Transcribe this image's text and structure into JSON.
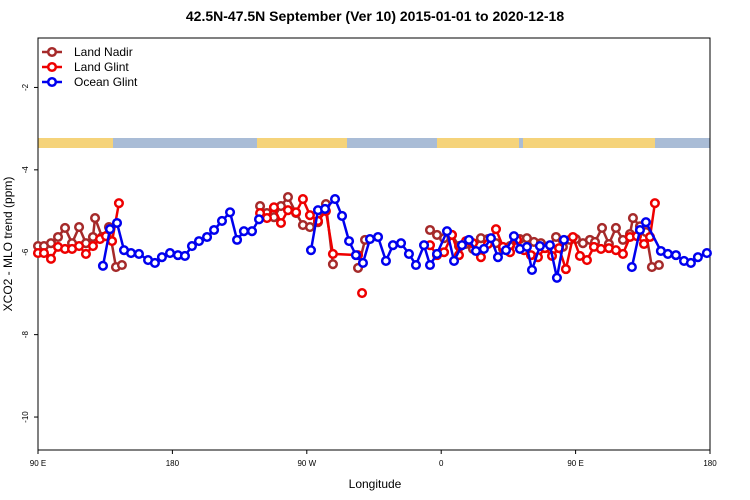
{
  "chart_data": {
    "type": "line",
    "title": "42.5N-47.5N September (Ver 10)   2015-01-01 to 2020-12-18",
    "xlabel": "Longitude",
    "ylabel": "XCO2 - MLO trend (ppm)",
    "xlim": [
      90,
      540
    ],
    "ylim": [
      -10.8,
      -0.8
    ],
    "xticks": [
      {
        "value": 90,
        "label": "90 E"
      },
      180,
      {
        "value": 270,
        "label": "90 W"
      },
      {
        "value": 360,
        "label": "0"
      },
      {
        "value": 450,
        "label": "90 E"
      },
      {
        "value": 540,
        "label": "180"
      }
    ],
    "yticks": [
      -2,
      -4,
      -6,
      -8,
      -10
    ],
    "legend": "upper left",
    "series": [
      {
        "name": "Land Nadir",
        "color": "#a52a2a",
        "x": [
          90.0,
          94.0,
          98.7,
          103.4,
          108.1,
          112.8,
          117.5,
          122.1,
          126.8,
          128.2,
          132.9,
          137.5,
          142.2,
          146.2,
          null,
          238.7,
          243.3,
          248.0,
          252.7,
          257.4,
          262.8,
          267.4,
          272.1,
          277.5,
          282.8,
          287.5,
          null,
          304.3,
          309.0,
          null,
          352.5,
          357.2,
          361.9,
          367.2,
          371.9,
          376.6,
          381.3,
          386.6,
          391.3,
          396.7,
          401.4,
          406.1,
          412.7,
          417.4,
          422.1,
          426.8,
          432.2,
          436.9,
          441.5,
          446.2,
          450.2,
          454.9,
          459.6,
          463.0,
          467.7,
          472.3,
          477.0,
          481.7,
          486.4,
          488.4,
          493.1,
          497.1,
          501.1,
          505.8
        ],
        "values": [
          -5.85,
          -5.85,
          -5.78,
          -5.63,
          -5.41,
          -5.78,
          -5.39,
          -5.78,
          -5.63,
          -5.17,
          -5.63,
          -5.39,
          -6.36,
          -6.31,
          null,
          -4.88,
          -5.05,
          -5.15,
          -4.88,
          -4.66,
          -5.05,
          -5.34,
          -5.39,
          -5.27,
          -4.83,
          -6.29,
          null,
          -6.38,
          -5.7,
          null,
          -5.46,
          -5.58,
          -5.66,
          -5.58,
          -5.85,
          -5.8,
          -5.92,
          -5.66,
          -5.68,
          -5.78,
          -5.92,
          -5.85,
          -5.68,
          -5.66,
          -5.75,
          -5.78,
          -5.85,
          -5.63,
          -5.87,
          -5.7,
          -5.68,
          -5.78,
          -5.7,
          -5.75,
          -5.41,
          -5.8,
          -5.41,
          -5.7,
          -5.56,
          -5.17,
          -5.37,
          -5.51,
          -6.36,
          -6.31
        ]
      },
      {
        "name": "Land Glint",
        "color": "#ee0000",
        "x": [
          90.0,
          94.0,
          98.7,
          103.4,
          108.1,
          112.8,
          117.5,
          122.1,
          126.8,
          131.5,
          135.5,
          139.6,
          144.2,
          null,
          238.7,
          243.3,
          248.0,
          252.7,
          257.4,
          262.8,
          267.4,
          272.1,
          277.5,
          282.8,
          287.5,
          304.3,
          null,
          307.0,
          null,
          352.5,
          357.2,
          361.9,
          367.2,
          371.9,
          376.6,
          381.3,
          386.6,
          391.3,
          396.7,
          401.4,
          406.1,
          410.8,
          415.5,
          420.1,
          424.8,
          429.5,
          434.2,
          438.9,
          443.5,
          448.2,
          452.9,
          457.6,
          462.3,
          467.0,
          472.3,
          477.0,
          481.7,
          486.4,
          491.1,
          495.8,
          499.8,
          503.1
        ],
        "values": [
          -6.02,
          -6.02,
          -6.16,
          -5.87,
          -5.92,
          -5.92,
          -5.85,
          -6.04,
          -5.85,
          -5.68,
          -5.61,
          -5.73,
          -4.81,
          null,
          -5.05,
          -5.17,
          -4.91,
          -5.29,
          -4.98,
          -5.03,
          -4.71,
          -5.1,
          -5.24,
          -5.0,
          -6.04,
          -6.07,
          null,
          -6.99,
          null,
          -5.83,
          -6.07,
          -6.0,
          -5.58,
          -6.07,
          -5.73,
          -5.78,
          -6.12,
          -5.8,
          -5.44,
          -5.87,
          -6.0,
          -5.7,
          -5.95,
          -6.07,
          -6.12,
          -5.9,
          -6.09,
          -5.9,
          -6.41,
          -5.63,
          -6.09,
          -6.19,
          -5.87,
          -5.92,
          -5.9,
          -5.95,
          -6.04,
          -5.63,
          -5.61,
          -5.8,
          -5.63,
          -4.81
        ]
      },
      {
        "name": "Ocean Glint",
        "color": "#0000ee",
        "x": [
          133.5,
          138.2,
          142.9,
          147.6,
          152.3,
          157.6,
          163.7,
          168.3,
          173.0,
          178.4,
          183.7,
          188.4,
          193.1,
          197.8,
          203.2,
          207.9,
          213.2,
          218.6,
          223.3,
          227.9,
          233.3,
          238.0,
          null,
          272.8,
          277.5,
          282.2,
          288.9,
          293.6,
          298.3,
          302.9,
          307.6,
          312.3,
          317.7,
          323.0,
          327.7,
          333.1,
          338.4,
          343.1,
          348.5,
          352.5,
          357.2,
          363.9,
          368.6,
          373.9,
          378.6,
          383.3,
          388.6,
          393.3,
          398.0,
          403.4,
          408.7,
          412.7,
          417.4,
          420.8,
          426.1,
          432.8,
          437.5,
          442.2,
          null,
          487.7,
          493.1,
          497.1,
          507.1,
          511.8,
          517.2,
          522.6,
          527.2,
          531.9,
          537.9
        ],
        "values": [
          -6.33,
          -5.44,
          -5.29,
          -5.95,
          -6.02,
          -6.04,
          -6.19,
          -6.26,
          -6.12,
          -6.02,
          -6.07,
          -6.09,
          -5.85,
          -5.73,
          -5.63,
          -5.46,
          -5.24,
          -5.03,
          -5.7,
          -5.49,
          -5.49,
          -5.2,
          null,
          -5.95,
          -4.98,
          -4.95,
          -4.71,
          -5.12,
          -5.73,
          -6.07,
          -6.26,
          -5.68,
          -5.63,
          -6.21,
          -5.83,
          -5.78,
          -6.04,
          -6.31,
          -5.83,
          -6.31,
          -6.04,
          -5.49,
          -6.21,
          -5.83,
          -5.7,
          -5.97,
          -5.92,
          -5.66,
          -6.12,
          -5.95,
          -5.61,
          -5.92,
          -5.87,
          -6.43,
          -5.85,
          -5.83,
          -6.62,
          -5.7,
          null,
          -6.36,
          -5.46,
          -5.27,
          -5.97,
          -6.04,
          -6.07,
          -6.21,
          -6.26,
          -6.12,
          -6.02
        ]
      }
    ]
  }
}
